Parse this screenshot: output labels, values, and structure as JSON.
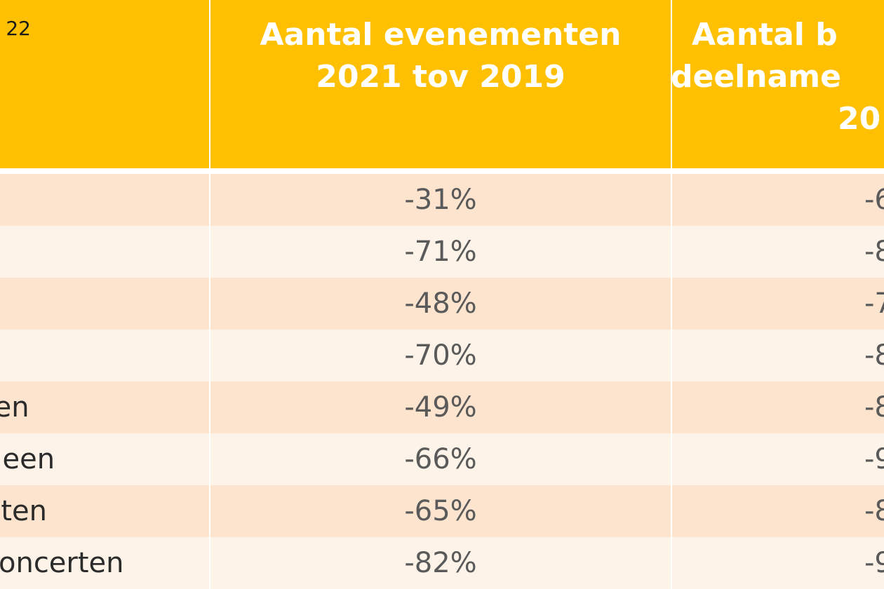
{
  "header": {
    "corner_label": "22",
    "col1_lines": [
      "Aantal evenementen",
      "2021 tov 2019"
    ],
    "col2_lines": [
      "Aantal b",
      "deelname",
      "20"
    ]
  },
  "rows": [
    {
      "label": "",
      "events_change": "-31%",
      "col3_partial": "-6"
    },
    {
      "label": "",
      "events_change": "-71%",
      "col3_partial": "-8"
    },
    {
      "label": "",
      "events_change": "-48%",
      "col3_partial": "-7"
    },
    {
      "label": "",
      "events_change": "-70%",
      "col3_partial": "-8"
    },
    {
      "label": "ten",
      "events_change": "-49%",
      "col3_partial": "-8"
    },
    {
      "label": "rieen",
      "events_change": "-66%",
      "col3_partial": "-9"
    },
    {
      "label": "nten",
      "events_change": "-65%",
      "col3_partial": "-8"
    },
    {
      "label": "concerten",
      "events_change": "-82%",
      "col3_partial": "-9"
    }
  ],
  "colors": {
    "header_bg": "#fec000",
    "row_shade": "#fce4cf",
    "row_light": "#fef3e8",
    "header_text": "#ffffff"
  }
}
